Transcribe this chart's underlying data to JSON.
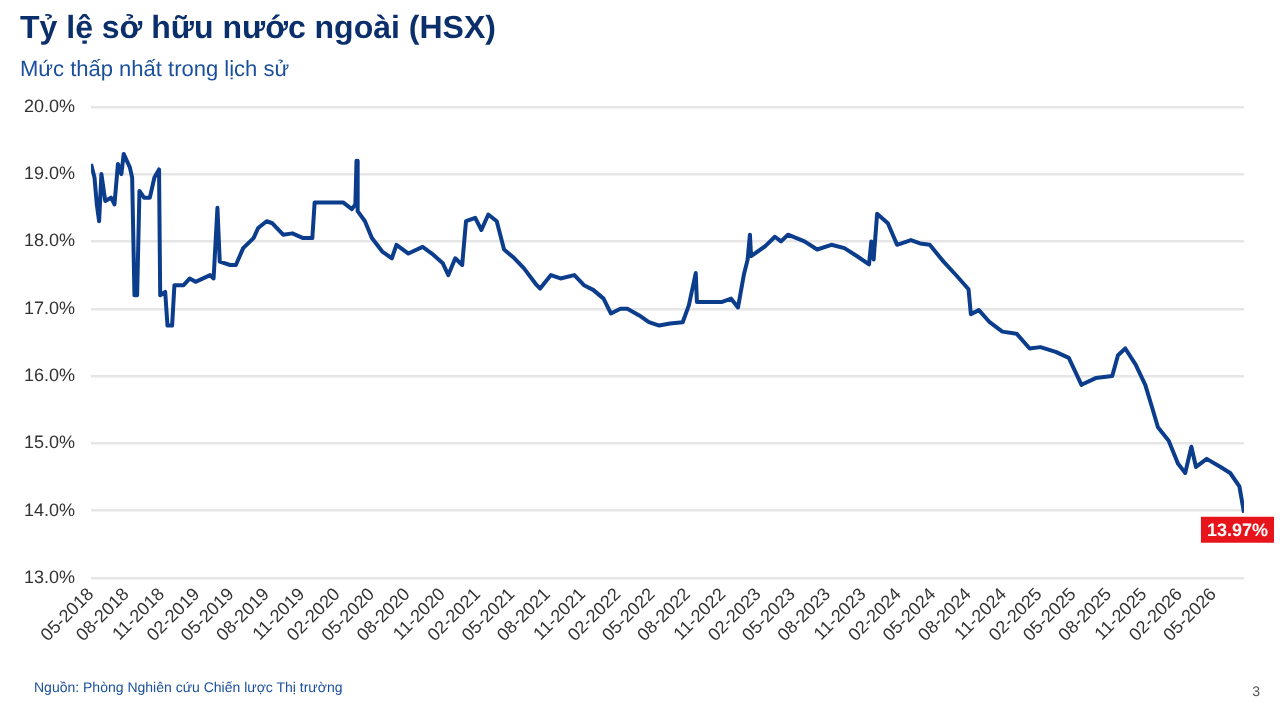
{
  "chart_data": {
    "type": "line",
    "title": "Tỷ lệ sở hữu nước ngoài (HSX)",
    "subtitle": "Mức thấp nhất trong lịch sử",
    "x": [
      "2018-05-01",
      "2018-05-10",
      "2018-05-16",
      "2018-05-22",
      "2018-05-28",
      "2018-06-07",
      "2018-06-22",
      "2018-07-01",
      "2018-07-10",
      "2018-07-19",
      "2018-07-25",
      "2018-08-10",
      "2018-08-16",
      "2018-08-22",
      "2018-08-29",
      "2018-09-04",
      "2018-09-16",
      "2018-10-01",
      "2018-10-13",
      "2018-10-25",
      "2018-10-28",
      "2018-11-10",
      "2018-11-16",
      "2018-11-28",
      "2018-12-04",
      "2018-12-28",
      "2019-01-13",
      "2019-01-28",
      "2019-03-07",
      "2019-03-16",
      "2019-03-26",
      "2019-04-01",
      "2019-04-28",
      "2019-05-13",
      "2019-06-01",
      "2019-06-28",
      "2019-07-10",
      "2019-08-01",
      "2019-08-16",
      "2019-09-13",
      "2019-10-07",
      "2019-11-04",
      "2019-11-28",
      "2019-12-04",
      "2020-01-10",
      "2020-02-16",
      "2020-03-10",
      "2020-03-19",
      "2020-03-22",
      "2020-03-25",
      "2020-04-13",
      "2020-05-01",
      "2020-05-28",
      "2020-06-22",
      "2020-07-04",
      "2020-08-04",
      "2020-09-10",
      "2020-10-04",
      "2020-11-01",
      "2020-11-16",
      "2020-12-04",
      "2020-12-22",
      "2021-01-01",
      "2021-01-25",
      "2021-02-10",
      "2021-02-28",
      "2021-03-22",
      "2021-04-10",
      "2021-05-07",
      "2021-06-01",
      "2021-07-04",
      "2021-07-13",
      "2021-08-10",
      "2021-09-04",
      "2021-10-10",
      "2021-11-04",
      "2021-11-28",
      "2021-12-25",
      "2022-01-13",
      "2022-02-07",
      "2022-02-25",
      "2022-03-28",
      "2022-04-22",
      "2022-05-19",
      "2022-06-16",
      "2022-07-19",
      "2022-08-04",
      "2022-08-22",
      "2022-08-25",
      "2022-10-28",
      "2022-11-22",
      "2022-12-10",
      "2022-12-25",
      "2023-01-04",
      "2023-01-10",
      "2023-01-13",
      "2023-02-19",
      "2023-03-16",
      "2023-04-01",
      "2023-04-19",
      "2023-06-01",
      "2023-07-04",
      "2023-08-10",
      "2023-09-13",
      "2023-10-16",
      "2023-11-16",
      "2023-11-22",
      "2023-11-28",
      "2023-12-07",
      "2024-01-04",
      "2024-01-28",
      "2024-03-04",
      "2024-03-28",
      "2024-04-22",
      "2024-05-28",
      "2024-07-01",
      "2024-08-01",
      "2024-08-07",
      "2024-08-28",
      "2024-09-25",
      "2024-10-28",
      "2024-12-04",
      "2025-01-07",
      "2025-02-04",
      "2025-03-16",
      "2025-04-19",
      "2025-05-22",
      "2025-06-28",
      "2025-08-10",
      "2025-08-25",
      "2025-09-13",
      "2025-10-10",
      "2025-11-04",
      "2025-11-22",
      "2025-12-07",
      "2026-01-04",
      "2026-01-28",
      "2026-02-16",
      "2026-03-04",
      "2026-03-16",
      "2026-04-13",
      "2026-05-19",
      "2026-06-13",
      "2026-07-07",
      "2026-07-19"
    ],
    "series": [
      {
        "color": "#0b3d8c",
        "values": [
          19.15,
          18.95,
          18.55,
          18.3,
          19.0,
          18.6,
          18.65,
          18.55,
          19.15,
          19.0,
          19.3,
          19.1,
          18.95,
          17.2,
          17.2,
          18.75,
          18.65,
          18.65,
          18.95,
          19.07,
          17.2,
          17.25,
          16.75,
          16.75,
          17.35,
          17.35,
          17.45,
          17.4,
          17.5,
          17.45,
          18.5,
          17.7,
          17.65,
          17.65,
          17.9,
          18.05,
          18.2,
          18.3,
          18.27,
          18.1,
          18.12,
          18.05,
          18.05,
          18.58,
          18.58,
          18.58,
          18.48,
          18.55,
          19.2,
          18.45,
          18.3,
          18.05,
          17.85,
          17.75,
          17.95,
          17.82,
          17.92,
          17.82,
          17.68,
          17.5,
          17.75,
          17.65,
          18.3,
          18.35,
          18.17,
          18.4,
          18.3,
          17.88,
          17.75,
          17.6,
          17.35,
          17.3,
          17.5,
          17.45,
          17.5,
          17.35,
          17.28,
          17.15,
          16.93,
          17.0,
          17.0,
          16.9,
          16.8,
          16.75,
          16.78,
          16.8,
          17.05,
          17.53,
          17.1,
          17.1,
          17.15,
          17.02,
          17.5,
          17.73,
          18.1,
          17.78,
          17.93,
          18.07,
          18.0,
          18.1,
          18.0,
          17.88,
          17.95,
          17.9,
          17.78,
          17.66,
          18.0,
          17.73,
          18.41,
          18.27,
          17.95,
          18.02,
          17.97,
          17.95,
          17.7,
          17.49,
          17.29,
          16.92,
          16.98,
          16.8,
          16.66,
          16.63,
          16.41,
          16.43,
          16.36,
          16.27,
          15.87,
          15.97,
          16.0,
          16.31,
          16.41,
          16.17,
          15.87,
          15.53,
          15.24,
          15.04,
          14.7,
          14.56,
          14.95,
          14.65,
          14.77,
          14.65,
          14.56,
          14.36,
          13.97
        ]
      }
    ],
    "xlim": [
      "2018-05-01",
      "2026-07-19"
    ],
    "xticks": [
      {
        "value": "2018-05",
        "label": "05-2018"
      },
      {
        "value": "2018-08",
        "label": "08-2018"
      },
      {
        "value": "2018-11",
        "label": "11-2018"
      },
      {
        "value": "2019-02",
        "label": "02-2019"
      },
      {
        "value": "2019-05",
        "label": "05-2019"
      },
      {
        "value": "2019-08",
        "label": "08-2019"
      },
      {
        "value": "2019-11",
        "label": "11-2019"
      },
      {
        "value": "2020-02",
        "label": "02-2020"
      },
      {
        "value": "2020-05",
        "label": "05-2020"
      },
      {
        "value": "2020-08",
        "label": "08-2020"
      },
      {
        "value": "2020-11",
        "label": "11-2020"
      },
      {
        "value": "2021-02",
        "label": "02-2021"
      },
      {
        "value": "2021-05",
        "label": "05-2021"
      },
      {
        "value": "2021-08",
        "label": "08-2021"
      },
      {
        "value": "2021-11",
        "label": "11-2021"
      },
      {
        "value": "2022-02",
        "label": "02-2022"
      },
      {
        "value": "2022-05",
        "label": "05-2022"
      },
      {
        "value": "2022-08",
        "label": "08-2022"
      },
      {
        "value": "2022-11",
        "label": "11-2022"
      },
      {
        "value": "2023-02",
        "label": "02-2023"
      },
      {
        "value": "2023-05",
        "label": "05-2023"
      },
      {
        "value": "2023-08",
        "label": "08-2023"
      },
      {
        "value": "2023-11",
        "label": "11-2023"
      },
      {
        "value": "2024-02",
        "label": "02-2024"
      },
      {
        "value": "2024-05",
        "label": "05-2024"
      },
      {
        "value": "2024-08",
        "label": "08-2024"
      },
      {
        "value": "2024-11",
        "label": "11-2024"
      },
      {
        "value": "2025-02",
        "label": "02-2025"
      },
      {
        "value": "2025-05",
        "label": "05-2025"
      },
      {
        "value": "2025-08",
        "label": "08-2025"
      },
      {
        "value": "2025-11",
        "label": "11-2025"
      },
      {
        "value": "2026-02",
        "label": "02-2026"
      },
      {
        "value": "2026-05",
        "label": "05-2026"
      }
    ],
    "ylim": [
      13,
      20
    ],
    "yticks": [
      {
        "value": 13,
        "label": "13.0%"
      },
      {
        "value": 14,
        "label": "14.0%"
      },
      {
        "value": 15,
        "label": "15.0%"
      },
      {
        "value": 16,
        "label": "16.0%"
      },
      {
        "value": 17,
        "label": "17.0%"
      },
      {
        "value": 18,
        "label": "18.0%"
      },
      {
        "value": 19,
        "label": "19.0%"
      },
      {
        "value": 20,
        "label": "20.0%"
      }
    ],
    "grid": "y",
    "legend": false,
    "marker": "none",
    "line_style": "solid",
    "annotations": [
      {
        "text": "13.97%",
        "x": "2026-07-19",
        "y": 13.97
      },
      "Nguồn: Phòng Nghiên cứu Chiến lược Thị trường",
      "3"
    ]
  }
}
